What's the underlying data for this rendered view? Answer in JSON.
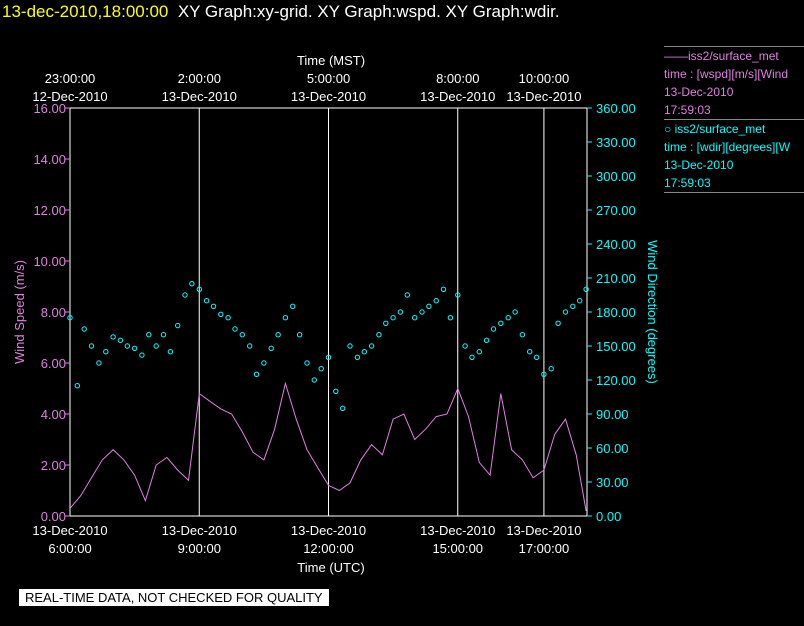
{
  "header": {
    "date_time": "13-dec-2010,18:00:00",
    "graph_titles": "XY Graph:xy-grid.  XY Graph:wspd.  XY Graph:wdir."
  },
  "legend": {
    "entry1": {
      "line1": "——iss2/surface_met",
      "line2": "time : [wspd][m/s][Wind",
      "line3": "13-Dec-2010",
      "line4": "17:59:03"
    },
    "entry2": {
      "line1": "○ iss2/surface_met",
      "line2": "time : [wdir][degrees][W",
      "line3": "13-Dec-2010",
      "line4": "17:59:03"
    }
  },
  "badge": {
    "text": "REAL-TIME DATA, NOT CHECKED FOR QUALITY"
  },
  "colors": {
    "wspd": "#e080e0",
    "wdir": "#00ffff",
    "grid": "#ffffff",
    "background": "#000000"
  },
  "chart_data": {
    "type": "line",
    "top_axis": {
      "label": "Time (MST)",
      "ticks": [
        {
          "h": 23,
          "time": "23:00:00",
          "date": "12-Dec-2010"
        },
        {
          "h": 2,
          "time": "2:00:00",
          "date": "13-Dec-2010"
        },
        {
          "h": 5,
          "time": "5:00:00",
          "date": "13-Dec-2010"
        },
        {
          "h": 8,
          "time": "8:00:00",
          "date": "13-Dec-2010"
        },
        {
          "h": 10,
          "time": "10:00:00",
          "date": "13-Dec-2010"
        }
      ]
    },
    "bottom_axis": {
      "label": "Time (UTC)",
      "ticks": [
        {
          "h": 6,
          "date": "13-Dec-2010",
          "time": "6:00:00"
        },
        {
          "h": 9,
          "date": "13-Dec-2010",
          "time": "9:00:00"
        },
        {
          "h": 12,
          "date": "13-Dec-2010",
          "time": "12:00:00"
        },
        {
          "h": 15,
          "date": "13-Dec-2010",
          "time": "15:00:00"
        },
        {
          "h": 17,
          "date": "13-Dec-2010",
          "time": "17:00:00"
        }
      ]
    },
    "xlim_hours_utc": [
      6.0,
      18.0
    ],
    "y_left": {
      "label": "Wind Speed (m/s)",
      "ylim": [
        0,
        16
      ],
      "tick_labels": [
        "0.00",
        "2.00",
        "4.00",
        "6.00",
        "8.00",
        "10.00",
        "12.00",
        "14.00",
        "16.00"
      ]
    },
    "y_right": {
      "label": "Wind Direction (degrees)",
      "ylim": [
        0,
        360
      ],
      "tick_labels": [
        "0.00",
        "30.00",
        "60.00",
        "90.00",
        "120.00",
        "150.00",
        "180.00",
        "210.00",
        "240.00",
        "270.00",
        "300.00",
        "330.00",
        "360.00"
      ]
    },
    "series": [
      {
        "name": "wspd",
        "axis": "left",
        "style": "line",
        "x": [
          6.0,
          6.25,
          6.5,
          6.75,
          7.0,
          7.25,
          7.5,
          7.75,
          8.0,
          8.25,
          8.5,
          8.75,
          9.0,
          9.25,
          9.5,
          9.75,
          10.0,
          10.25,
          10.5,
          10.75,
          11.0,
          11.25,
          11.5,
          11.75,
          12.0,
          12.25,
          12.5,
          12.75,
          13.0,
          13.25,
          13.5,
          13.75,
          14.0,
          14.25,
          14.5,
          14.75,
          15.0,
          15.25,
          15.5,
          15.75,
          16.0,
          16.25,
          16.5,
          16.75,
          17.0,
          17.25,
          17.5,
          17.75,
          17.98
        ],
        "values": [
          0.3,
          0.8,
          1.5,
          2.2,
          2.6,
          2.2,
          1.6,
          0.6,
          2.0,
          2.3,
          1.8,
          1.4,
          4.8,
          4.5,
          4.2,
          4.0,
          3.3,
          2.5,
          2.2,
          3.4,
          5.2,
          3.8,
          2.6,
          1.9,
          1.2,
          1.0,
          1.3,
          2.2,
          2.8,
          2.4,
          3.8,
          4.0,
          3.0,
          3.4,
          3.9,
          4.0,
          5.0,
          3.9,
          2.1,
          1.6,
          4.8,
          2.6,
          2.2,
          1.5,
          1.8,
          3.2,
          3.8,
          2.4,
          0.2
        ]
      },
      {
        "name": "wdir",
        "axis": "right",
        "style": "scatter",
        "x": [
          6.0,
          6.17,
          6.33,
          6.5,
          6.67,
          6.83,
          7.0,
          7.17,
          7.33,
          7.5,
          7.67,
          7.83,
          8.0,
          8.17,
          8.33,
          8.5,
          8.67,
          8.83,
          9.0,
          9.17,
          9.33,
          9.5,
          9.67,
          9.83,
          10.0,
          10.17,
          10.33,
          10.5,
          10.67,
          10.83,
          11.0,
          11.17,
          11.33,
          11.5,
          11.67,
          11.83,
          12.0,
          12.17,
          12.33,
          12.5,
          12.67,
          12.83,
          13.0,
          13.17,
          13.33,
          13.5,
          13.67,
          13.83,
          14.0,
          14.17,
          14.33,
          14.5,
          14.67,
          14.83,
          15.0,
          15.17,
          15.33,
          15.5,
          15.67,
          15.83,
          16.0,
          16.17,
          16.33,
          16.5,
          16.67,
          16.83,
          17.0,
          17.17,
          17.33,
          17.5,
          17.67,
          17.83,
          17.98
        ],
        "values": [
          175,
          115,
          165,
          150,
          135,
          145,
          158,
          155,
          150,
          148,
          142,
          160,
          150,
          160,
          145,
          168,
          195,
          205,
          200,
          190,
          185,
          178,
          175,
          165,
          160,
          150,
          125,
          135,
          148,
          160,
          175,
          185,
          160,
          135,
          120,
          130,
          140,
          110,
          95,
          150,
          140,
          145,
          150,
          160,
          170,
          175,
          180,
          195,
          175,
          180,
          185,
          190,
          200,
          175,
          195,
          150,
          140,
          145,
          155,
          165,
          170,
          175,
          180,
          160,
          145,
          140,
          125,
          130,
          170,
          180,
          185,
          190,
          200
        ]
      }
    ]
  }
}
